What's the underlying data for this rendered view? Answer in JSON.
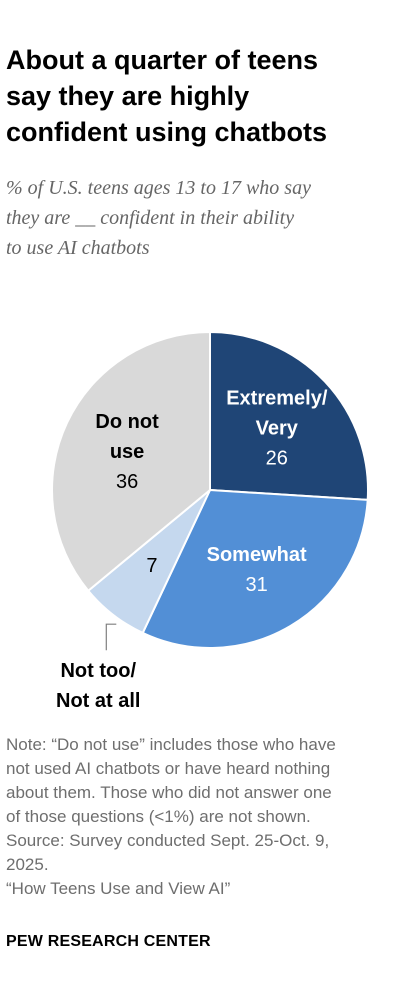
{
  "title": "About a quarter of teens\nsay they are highly\nconfident using chatbots",
  "subtitle": "% of U.S. teens ages 13 to 17 who say\nthey are __ confident in their ability\nto use AI chatbots",
  "chart_data": {
    "type": "pie",
    "title": "About a quarter of teens say they are highly confident using chatbots",
    "subtitle": "% of U.S. teens ages 13 to 17 who say they are __ confident in their ability to use AI chatbots",
    "start": "12 o'clock, clockwise",
    "slices": [
      {
        "label": "Extremely/\nVery",
        "value": 26,
        "color": "#1f4576",
        "label_color": "#ffffff",
        "label_position": "inside"
      },
      {
        "label": "Somewhat",
        "value": 31,
        "color": "#528fd6",
        "label_color": "#ffffff",
        "label_position": "inside"
      },
      {
        "label": "Not too/\nNot at all",
        "value": 7,
        "color": "#c5d8ee",
        "label_color": "#000000",
        "label_position": "outside-callout"
      },
      {
        "label": "Do not\nuse",
        "value": 36,
        "color": "#d9d9d9",
        "label_color": "#000000",
        "label_position": "inside"
      }
    ]
  },
  "notes": "Note: “Do not use” includes those who have\nnot used AI chatbots or have heard nothing\nabout them. Those who did not answer one\nof those questions (<1%) are not shown.\nSource: Survey conducted Sept. 25-Oct. 9,\n2025.\n“How Teens Use and View AI”",
  "brand": "PEW RESEARCH CENTER"
}
